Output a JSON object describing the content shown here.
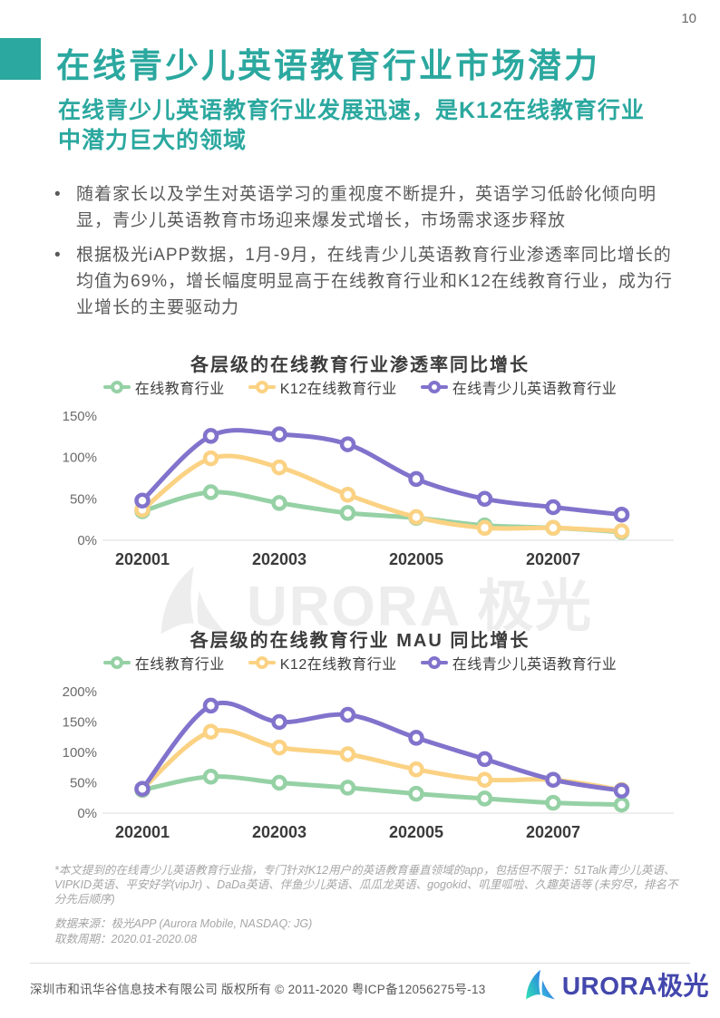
{
  "page": {
    "number": "10"
  },
  "header": {
    "title": "在线青少儿英语教育行业市场潜力",
    "subtitle": "在线青少儿英语教育行业发展迅速，是K12在线教育行业中潜力巨大的领域"
  },
  "bullets": [
    "随着家长以及学生对英语学习的重视度不断提升，英语学习低龄化倾向明显，青少儿英语教育市场迎来爆发式增长，市场需求逐步释放",
    "根据极光iAPP数据，1月-9月，在线青少儿英语教育行业渗透率同比增长的均值为69%，增长幅度明显高于在线教育行业和K12在线教育行业，成为行业增长的主要驱动力"
  ],
  "colors": {
    "accent_teal": "#2BA89F",
    "series_green": "#95D1A5",
    "series_yellow": "#FBD283",
    "series_purple": "#8173CC",
    "axis_label": "#6B6B6B",
    "x_tick": "#3B3B3B",
    "baseline": "#E3E3E3",
    "logo_indigo": "#4347AC"
  },
  "chart_data": [
    {
      "type": "line",
      "title": "各层级的在线教育行业渗透率同比增长",
      "x": [
        "202001",
        "202002",
        "202003",
        "202004",
        "202005",
        "202006",
        "202007",
        "202008"
      ],
      "x_tick_indices": [
        0,
        2,
        4,
        6
      ],
      "x_tick_labels": [
        "202001",
        "202003",
        "202005",
        "202007"
      ],
      "ylim": [
        0,
        150
      ],
      "yticks": [
        0,
        50,
        100,
        150
      ],
      "ylabel_suffix": "%",
      "grid": "baseline-only",
      "legend_position": "top",
      "series": [
        {
          "name": "在线教育行业",
          "color": "#95D1A5",
          "values": [
            35,
            58,
            45,
            33,
            27,
            18,
            15,
            10
          ]
        },
        {
          "name": "K12在线教育行业",
          "color": "#FBD283",
          "values": [
            37,
            99,
            88,
            55,
            28,
            15,
            15,
            11
          ]
        },
        {
          "name": "在线青少儿英语教育行业",
          "color": "#8173CC",
          "values": [
            48,
            126,
            128,
            116,
            74,
            50,
            40,
            31
          ]
        }
      ]
    },
    {
      "type": "line",
      "title": "各层级的在线教育行业 MAU 同比增长",
      "x": [
        "202001",
        "202002",
        "202003",
        "202004",
        "202005",
        "202006",
        "202007",
        "202008"
      ],
      "x_tick_indices": [
        0,
        2,
        4,
        6
      ],
      "x_tick_labels": [
        "202001",
        "202003",
        "202005",
        "202007"
      ],
      "ylim": [
        0,
        200
      ],
      "yticks": [
        0,
        50,
        100,
        150,
        200
      ],
      "ylabel_suffix": "%",
      "grid": "baseline-only",
      "legend_position": "top",
      "series": [
        {
          "name": "在线教育行业",
          "color": "#95D1A5",
          "values": [
            38,
            60,
            50,
            42,
            32,
            24,
            17,
            14
          ]
        },
        {
          "name": "K12在线教育行业",
          "color": "#FBD283",
          "values": [
            40,
            134,
            108,
            97,
            72,
            55,
            55,
            38
          ]
        },
        {
          "name": "在线青少儿英语教育行业",
          "color": "#8173CC",
          "values": [
            40,
            177,
            150,
            162,
            124,
            89,
            55,
            37
          ]
        }
      ]
    }
  ],
  "watermark": {
    "text": "URORA 极光"
  },
  "footnote": "*本文提到的在线青少儿英语教育行业指，专门针对K12用户的英语教育垂直领域的app，包括但不限于：51Talk青少儿英语、VIPKID英语、平安好学(vipJr) 、DaDa英语、伴鱼少儿英语、瓜瓜龙英语、gogokid、叽里呱啦、久趣英语等 (未穷尽，排名不分先后顺序)",
  "source": {
    "line1": "数据来源：极光APP (Aurora Mobile, NASDAQ: JG)",
    "line2": "取数周期：2020.01-2020.08"
  },
  "footer": {
    "copyright": "深圳市和讯华谷信息技术有限公司 版权所有 © 2011-2020 粤ICP备12056275号-13",
    "logo_text": "URORA极光"
  }
}
